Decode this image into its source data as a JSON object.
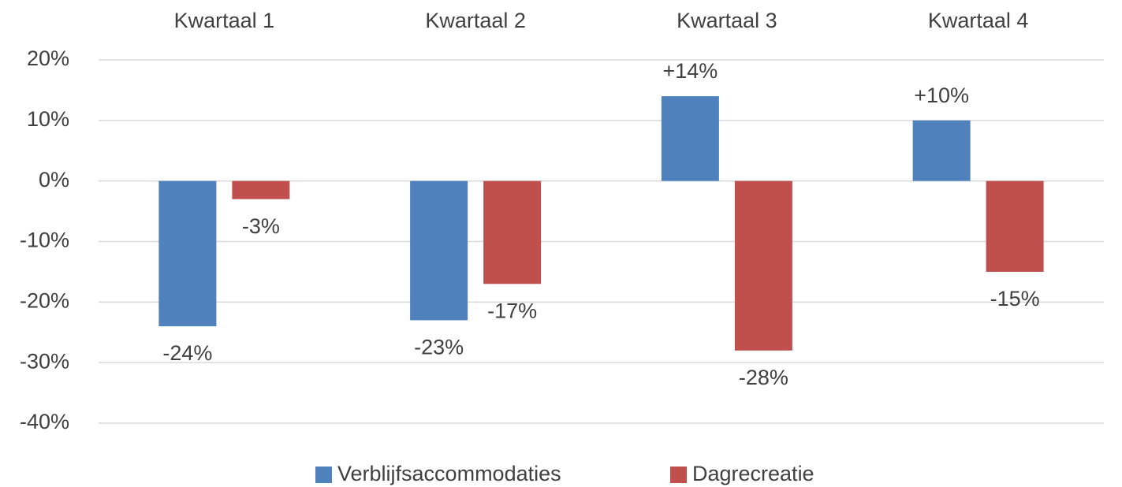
{
  "chart_data": {
    "type": "bar",
    "categories": [
      "Kwartaal 1",
      "Kwartaal 2",
      "Kwartaal 3",
      "Kwartaal 4"
    ],
    "series": [
      {
        "name": "Verblijfsaccommodaties",
        "color": "#4f81bd",
        "values": [
          -24,
          -23,
          14,
          10
        ],
        "value_labels": [
          "-24%",
          "-23%",
          "+14%",
          "+10%"
        ]
      },
      {
        "name": "Dagrecreatie",
        "color": "#c0504d",
        "values": [
          -3,
          -17,
          -28,
          -15
        ],
        "value_labels": [
          "-3%",
          "-17%",
          "-28%",
          "-15%"
        ]
      }
    ],
    "ylim": [
      -40,
      20
    ],
    "yticks": [
      {
        "value": 20,
        "label": "20%"
      },
      {
        "value": 10,
        "label": "10%"
      },
      {
        "value": 0,
        "label": "0%"
      },
      {
        "value": -10,
        "label": "-10%"
      },
      {
        "value": -20,
        "label": "-20%"
      },
      {
        "value": -30,
        "label": "-30%"
      },
      {
        "value": -40,
        "label": "-40%"
      }
    ],
    "grid": true,
    "legend": "bottom"
  }
}
